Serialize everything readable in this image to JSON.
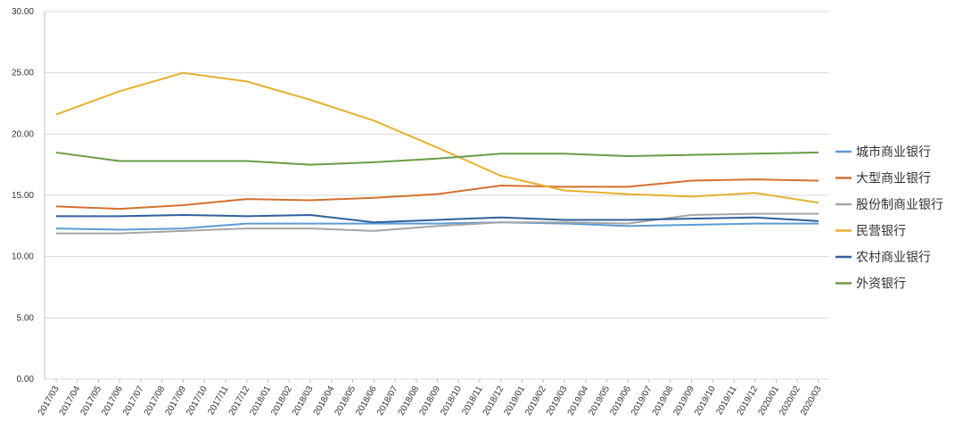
{
  "chart_data": {
    "type": "line",
    "x": [
      "2017/03",
      "2017/06",
      "2017/09",
      "2017/12",
      "2018/03",
      "2018/06",
      "2018/09",
      "2018/12",
      "2019/03",
      "2019/06",
      "2019/09",
      "2019/12",
      "2020/03"
    ],
    "xticks": [
      "2017/03",
      "2017/04",
      "2017/05",
      "2017/06",
      "2017/07",
      "2017/08",
      "2017/09",
      "2017/10",
      "2017/11",
      "2017/12",
      "2018/01",
      "2018/02",
      "2018/03",
      "2018/04",
      "2018/05",
      "2018/06",
      "2018/07",
      "2018/08",
      "2018/09",
      "2018/10",
      "2018/11",
      "2018/12",
      "2019/01",
      "2019/02",
      "2019/03",
      "2019/04",
      "2019/05",
      "2019/06",
      "2019/07",
      "2019/08",
      "2019/09",
      "2019/10",
      "2019/11",
      "2019/12",
      "2020/01",
      "2020/02",
      "2020/03"
    ],
    "ylim": [
      0,
      30
    ],
    "yticks": [
      {
        "value": 0,
        "label": "0.00"
      },
      {
        "value": 5,
        "label": "5.00"
      },
      {
        "value": 10,
        "label": "10.00"
      },
      {
        "value": 15,
        "label": "15.00"
      },
      {
        "value": 20,
        "label": "20.00"
      },
      {
        "value": 25,
        "label": "25.00"
      },
      {
        "value": 30,
        "label": "30.00"
      }
    ],
    "grid": true,
    "legend": "right",
    "series": [
      {
        "name": "城市商业银行",
        "color": "#5b9bd5",
        "values": [
          12.3,
          12.2,
          12.3,
          12.7,
          12.7,
          12.7,
          12.7,
          12.8,
          12.7,
          12.5,
          12.6,
          12.7,
          12.7
        ]
      },
      {
        "name": "大型商业银行",
        "color": "#d4702f",
        "values": [
          14.1,
          13.9,
          14.2,
          14.7,
          14.6,
          14.8,
          15.1,
          15.8,
          15.7,
          15.7,
          16.2,
          16.3,
          16.2
        ]
      },
      {
        "name": "股份制商业银行",
        "color": "#a5a5a5",
        "values": [
          11.9,
          11.9,
          12.1,
          12.3,
          12.3,
          12.1,
          12.5,
          12.8,
          12.8,
          12.7,
          13.4,
          13.5,
          13.5
        ]
      },
      {
        "name": "民营银行",
        "color": "#e8b02f",
        "values": [
          21.6,
          23.5,
          25.0,
          24.3,
          22.8,
          21.1,
          18.9,
          16.6,
          15.4,
          15.1,
          14.9,
          15.2,
          14.4
        ]
      },
      {
        "name": "农村商业银行",
        "color": "#30609b",
        "values": [
          13.3,
          13.3,
          13.4,
          13.3,
          13.4,
          12.8,
          13.0,
          13.2,
          13.0,
          13.0,
          13.1,
          13.2,
          12.9
        ]
      },
      {
        "name": "外资银行",
        "color": "#6a9c45",
        "values": [
          18.5,
          17.8,
          17.8,
          17.8,
          17.5,
          17.7,
          18.0,
          18.4,
          18.4,
          18.2,
          18.3,
          18.4,
          18.5
        ]
      }
    ]
  }
}
